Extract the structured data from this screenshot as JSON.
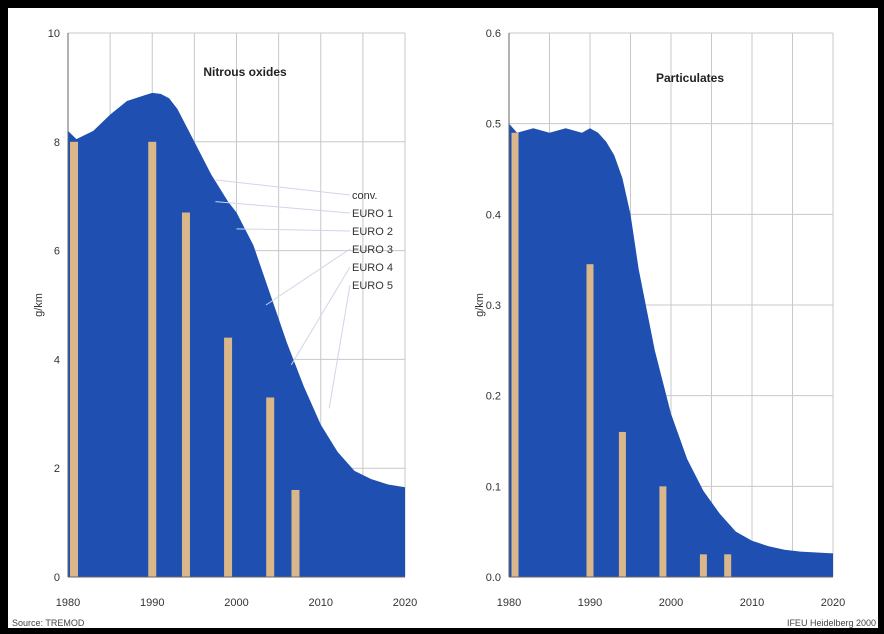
{
  "colors": {
    "area": "#1f4fb0",
    "bar": "#d9b78a",
    "panel": "#ffffff",
    "grid": "#c8c8c8",
    "frame": "#000000"
  },
  "footer": {
    "source": "Source: TREMOD",
    "credit": "IFEU Heidelberg 2000"
  },
  "chart_data": [
    {
      "type": "area",
      "title": "Nitrous oxides",
      "ylabel": "g/km",
      "xlim": [
        1980,
        2020
      ],
      "ylim": [
        0,
        10
      ],
      "xticks": [
        1980,
        1990,
        2000,
        2010,
        2020
      ],
      "yticks": [
        0,
        2,
        4,
        6,
        8,
        10
      ],
      "ytick_labels": [
        "0",
        "2",
        "4",
        "6",
        "8",
        "10"
      ],
      "series": [
        {
          "type": "area",
          "x": [
            1980,
            1981,
            1983,
            1985,
            1987,
            1989,
            1990,
            1991,
            1992,
            1993,
            1995,
            1997,
            1999,
            2000,
            2002,
            2004,
            2006,
            2008,
            2010,
            2012,
            2014,
            2016,
            2018,
            2020
          ],
          "values": [
            8.2,
            8.05,
            8.2,
            8.5,
            8.75,
            8.85,
            8.9,
            8.88,
            8.8,
            8.6,
            8.0,
            7.4,
            6.9,
            6.7,
            6.1,
            5.2,
            4.3,
            3.5,
            2.8,
            2.3,
            1.95,
            1.8,
            1.7,
            1.65
          ]
        },
        {
          "type": "bar",
          "x": [
            1980,
            1990,
            1994,
            1999,
            2004,
            2007
          ],
          "values": [
            8.0,
            8.0,
            6.7,
            4.4,
            3.3,
            1.6
          ]
        }
      ],
      "annotations": [
        "conv.",
        "EURO 1",
        "EURO 2",
        "EURO 3",
        "EURO 4",
        "EURO 5"
      ]
    },
    {
      "type": "area",
      "title": "Particulates",
      "ylabel": "g/km",
      "xlim": [
        1980,
        2020
      ],
      "ylim": [
        0,
        0.6
      ],
      "xticks": [
        1980,
        1990,
        2000,
        2010,
        2020
      ],
      "yticks": [
        0,
        0.1,
        0.2,
        0.3,
        0.4,
        0.5,
        0.6
      ],
      "ytick_labels": [
        "0.0",
        "0.1",
        "0.2",
        "0.3",
        "0.4",
        "0.5",
        "0.6"
      ],
      "series": [
        {
          "type": "area",
          "x": [
            1980,
            1981,
            1983,
            1985,
            1987,
            1989,
            1990,
            1991,
            1992,
            1993,
            1994,
            1995,
            1996,
            1998,
            2000,
            2002,
            2004,
            2006,
            2008,
            2010,
            2012,
            2014,
            2016,
            2018,
            2020
          ],
          "values": [
            0.5,
            0.49,
            0.495,
            0.49,
            0.495,
            0.49,
            0.495,
            0.49,
            0.48,
            0.465,
            0.44,
            0.4,
            0.34,
            0.25,
            0.18,
            0.13,
            0.095,
            0.07,
            0.05,
            0.04,
            0.034,
            0.03,
            0.028,
            0.027,
            0.026
          ]
        },
        {
          "type": "bar",
          "x": [
            1980,
            1990,
            1994,
            1999,
            2004,
            2007
          ],
          "values": [
            0.49,
            0.345,
            0.16,
            0.1,
            0.025,
            0.025
          ]
        }
      ]
    }
  ]
}
